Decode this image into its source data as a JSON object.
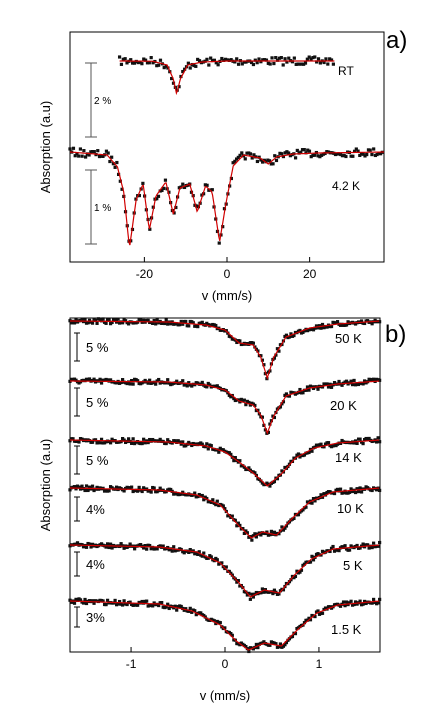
{
  "chart_data": [
    {
      "panel": "a)",
      "type": "scatter",
      "xlabel": "v (mm/s)",
      "ylabel": "Absorption (a.u)",
      "xlim": [
        -38,
        38
      ],
      "xticks": [
        -20,
        0,
        20
      ],
      "series": [
        {
          "name": "RT",
          "x_range": [
            -26,
            26
          ],
          "line_color": "#d00000",
          "scale": "2 %",
          "fit_points": [
            [
              -26,
              0.0
            ],
            [
              -18,
              -0.2
            ],
            [
              -14.5,
              -4
            ],
            [
              -13,
              -18
            ],
            [
              -12.2,
              -33
            ],
            [
              -11.3,
              -18
            ],
            [
              -9.5,
              -4
            ],
            [
              -6,
              -1
            ],
            [
              0,
              0.0
            ],
            [
              26,
              0.0
            ]
          ]
        },
        {
          "name": "4.2 K",
          "x_range": [
            -38,
            38
          ],
          "line_color": "#d00000",
          "scale": "1 %",
          "fit_points": [
            [
              -38,
              0.0
            ],
            [
              -29,
              -3
            ],
            [
              -26.5,
              -15
            ],
            [
              -25,
              -40
            ],
            [
              -23.6,
              -96
            ],
            [
              -22,
              -48
            ],
            [
              -20.3,
              -32
            ],
            [
              -18.8,
              -78
            ],
            [
              -17.2,
              -44
            ],
            [
              -14.8,
              -30
            ],
            [
              -13,
              -62
            ],
            [
              -11.4,
              -36
            ],
            [
              -9,
              -32
            ],
            [
              -7.2,
              -60
            ],
            [
              -5.2,
              -34
            ],
            [
              -3.6,
              -40
            ],
            [
              -1.8,
              -90
            ],
            [
              -0.2,
              -50
            ],
            [
              1.5,
              -14
            ],
            [
              4,
              -3
            ],
            [
              8,
              -6
            ],
            [
              10,
              -12
            ],
            [
              12,
              -5
            ],
            [
              16,
              -2
            ],
            [
              22,
              -1
            ],
            [
              38,
              0.0
            ]
          ]
        }
      ]
    },
    {
      "panel": "b)",
      "type": "scatter",
      "xlabel": "v (mm/s)",
      "ylabel": "Absorption (a.u)",
      "xlim": [
        -1.65,
        1.65
      ],
      "xticks": [
        -1,
        0,
        1
      ],
      "series": [
        {
          "name": "50 K",
          "scale": "5 %",
          "line_color": "#d00000"
        },
        {
          "name": "20 K",
          "scale": "5 %",
          "line_color": "#d00000"
        },
        {
          "name": "14 K",
          "scale": "5 %",
          "line_color": "#d00000"
        },
        {
          "name": "10 K",
          "scale": "4%",
          "line_color": "#d00000"
        },
        {
          "name": "5 K",
          "scale": "4%",
          "line_color": "#d00000"
        },
        {
          "name": "1.5 K",
          "scale": "3%",
          "line_color": "#d00000"
        }
      ]
    }
  ]
}
